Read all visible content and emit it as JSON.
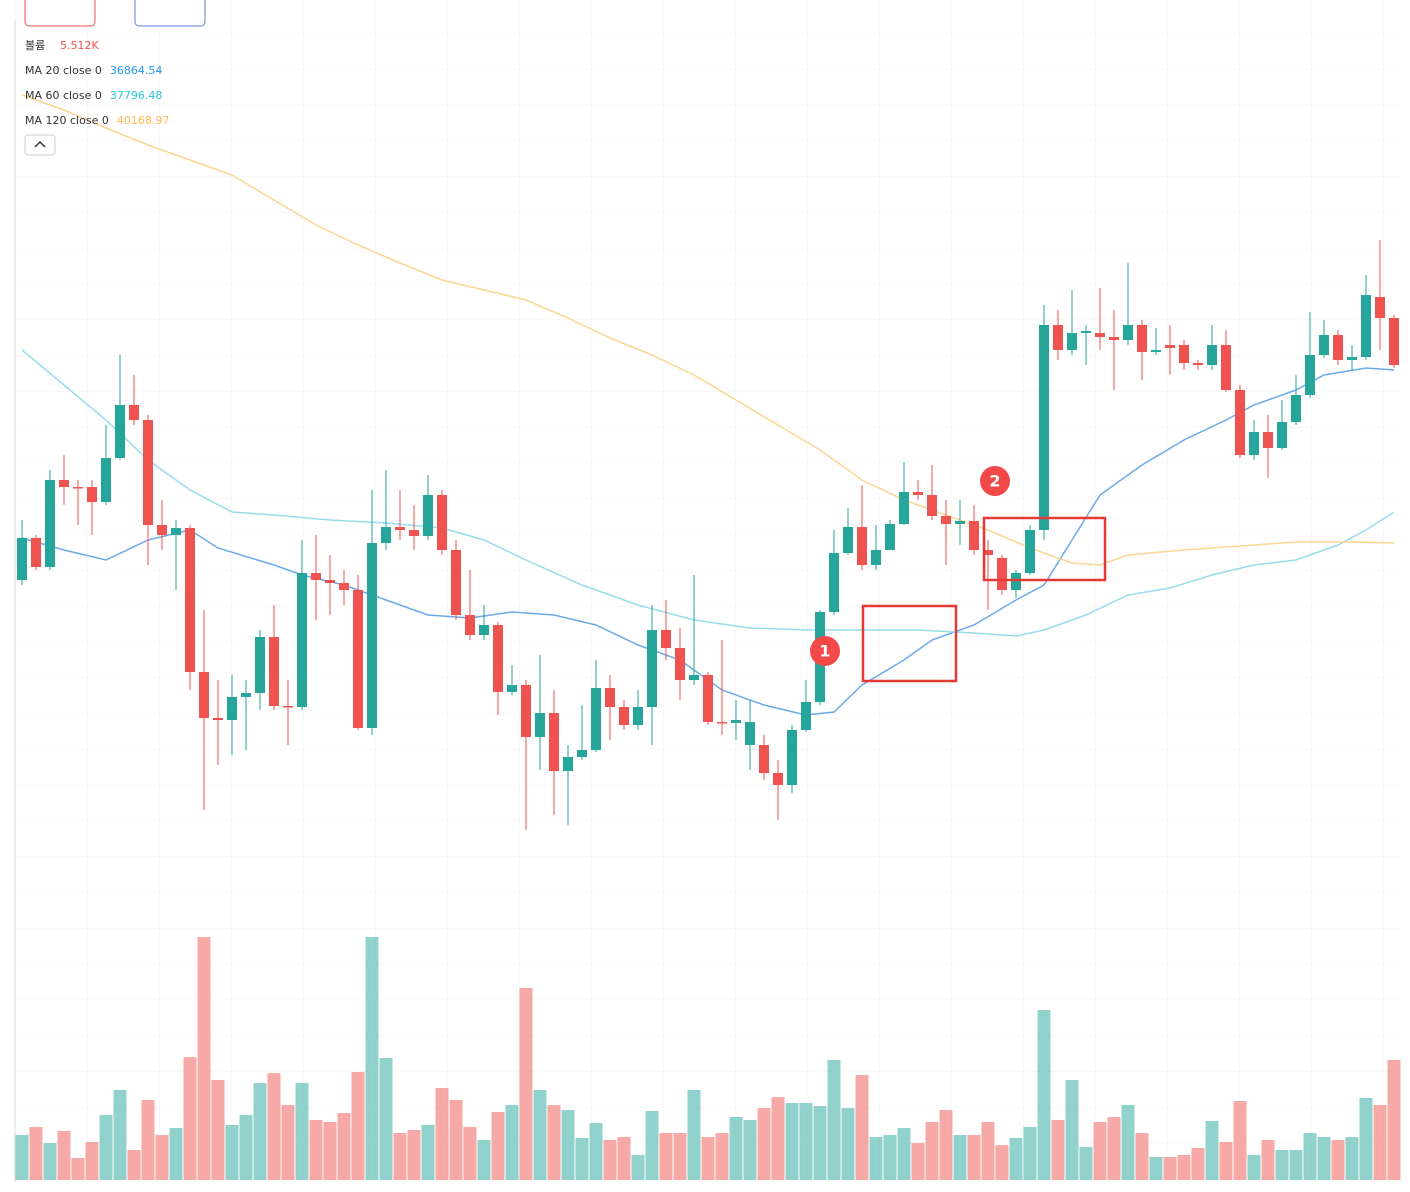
{
  "chart_data": {
    "type": "candlestick",
    "open": [
      40200,
      40620,
      40330,
      41200,
      41130,
      41130,
      40980,
      41420,
      41950,
      41800,
      40750,
      40650,
      40720,
      39280,
      38820,
      38800,
      39030,
      39070,
      39630,
      38940,
      38930,
      40270,
      40200,
      40170,
      40100,
      38720,
      40570,
      40730,
      40700,
      40640,
      41050,
      40500,
      39850,
      39650,
      39750,
      39080,
      39150,
      38630,
      38870,
      38290,
      38430,
      38500,
      39120,
      38930,
      38750,
      38930,
      39700,
      39520,
      39200,
      39250,
      38780,
      38770,
      38550,
      38550,
      38270,
      38150,
      38700,
      38980,
      39880,
      40470,
      40730,
      40350,
      40500,
      40760,
      41080,
      41050,
      40840,
      40760,
      40790,
      40500,
      40420,
      40100,
      40270,
      40700,
      42750,
      42500,
      42670,
      42670,
      42630,
      42600,
      42750,
      42480,
      42550,
      42550,
      42370,
      42350,
      42550,
      42100,
      41450,
      41680,
      41520,
      41780,
      42050,
      42450,
      42650,
      42400,
      42430,
      43030,
      42820
    ],
    "high": [
      40800,
      40650,
      41300,
      41450,
      41200,
      41200,
      41750,
      42450,
      42250,
      41850,
      41000,
      40800,
      40750,
      39900,
      39200,
      39250,
      39200,
      39700,
      39950,
      39200,
      40600,
      40650,
      40450,
      40300,
      40250,
      41100,
      41300,
      41100,
      40950,
      41250,
      41100,
      40600,
      40300,
      39950,
      39780,
      39350,
      39200,
      39450,
      39100,
      38550,
      38950,
      39400,
      39250,
      39000,
      39100,
      39950,
      40000,
      39720,
      40250,
      39280,
      39600,
      39000,
      39000,
      38650,
      38400,
      38750,
      39200,
      39900,
      40700,
      40920,
      41150,
      40750,
      40800,
      41380,
      41200,
      41350,
      41000,
      41000,
      40950,
      40600,
      40450,
      40300,
      40750,
      42950,
      42900,
      43100,
      42750,
      43120,
      42900,
      43370,
      42800,
      42720,
      42750,
      42600,
      42400,
      42750,
      42700,
      42150,
      41800,
      41850,
      42000,
      42250,
      42880,
      42800,
      42700,
      42550,
      43250,
      43600,
      42850
    ],
    "low": [
      40150,
      40300,
      40300,
      40950,
      40750,
      40650,
      40950,
      41400,
      41750,
      40350,
      40500,
      40100,
      39100,
      37900,
      38350,
      38450,
      38500,
      38900,
      38900,
      38550,
      38900,
      39800,
      39850,
      39950,
      38700,
      38650,
      40500,
      40600,
      40500,
      40600,
      40450,
      39800,
      39600,
      39600,
      38850,
      39050,
      37700,
      38300,
      37850,
      37750,
      38400,
      38480,
      38600,
      38700,
      38700,
      38550,
      39400,
      39000,
      39150,
      38750,
      38650,
      38600,
      38300,
      38200,
      37800,
      38070,
      38680,
      38950,
      39850,
      40450,
      40300,
      40300,
      40500,
      40750,
      41000,
      40800,
      40350,
      40550,
      40450,
      39900,
      40050,
      40020,
      40250,
      40600,
      42400,
      42450,
      42350,
      42500,
      42100,
      42550,
      42200,
      42450,
      42250,
      42300,
      42300,
      42300,
      42080,
      41420,
      41400,
      41220,
      41500,
      41750,
      42020,
      42420,
      42350,
      42300,
      42400,
      42500,
      42320
    ],
    "close": [
      40620,
      40330,
      41200,
      41130,
      41120,
      40980,
      41420,
      41950,
      41800,
      40750,
      40650,
      40720,
      39280,
      38820,
      38800,
      39030,
      39070,
      39630,
      38940,
      38930,
      40270,
      40200,
      40170,
      40100,
      38720,
      40570,
      40730,
      40700,
      40640,
      41050,
      40500,
      39850,
      39650,
      39750,
      39080,
      39150,
      38630,
      38870,
      38290,
      38430,
      38500,
      39120,
      38930,
      38750,
      38930,
      39700,
      39520,
      39200,
      39250,
      38780,
      38770,
      38800,
      38780,
      38270,
      38150,
      38700,
      38980,
      39880,
      40470,
      40730,
      40350,
      40500,
      40760,
      41080,
      41050,
      40840,
      40760,
      40790,
      40500,
      40450,
      40100,
      40270,
      40700,
      42750,
      42500,
      42670,
      42690,
      42630,
      42600,
      42750,
      42480,
      42500,
      42520,
      42370,
      42350,
      42550,
      42100,
      41450,
      41680,
      41520,
      41780,
      42050,
      42450,
      42650,
      42400,
      42430,
      43050,
      42820,
      42350
    ],
    "up_color": "#26a69a",
    "down_color": "#ef5350",
    "ylim": [
      37000,
      46000
    ],
    "volume": {
      "name": "볼륨",
      "legend_value": 5512,
      "legend_value_label": "5.512K",
      "legend_color": "#ef5350",
      "ylim": [
        0,
        8000
      ],
      "values": [
        1125,
        1325,
        925,
        1225,
        550,
        950,
        1625,
        2250,
        750,
        2000,
        1125,
        1300,
        3075,
        6075,
        2500,
        1375,
        1625,
        2425,
        2675,
        1875,
        2425,
        1500,
        1450,
        1675,
        2700,
        6075,
        3050,
        1175,
        1250,
        1375,
        2300,
        2000,
        1325,
        1000,
        1700,
        1875,
        4800,
        2250,
        1875,
        1750,
        1050,
        1425,
        1000,
        1075,
        625,
        1725,
        1175,
        1175,
        2250,
        1075,
        1175,
        1575,
        1500,
        1800,
        2075,
        1925,
        1925,
        1850,
        3000,
        1800,
        2625,
        1075,
        1125,
        1300,
        925,
        1450,
        1750,
        1125,
        1125,
        1450,
        875,
        1050,
        1325,
        4250,
        1500,
        2500,
        825,
        1450,
        1575,
        1875,
        1175,
        575,
        575,
        625,
        800,
        1475,
        950,
        1975,
        625,
        1000,
        750,
        750,
        1175,
        1075,
        1000,
        1075,
        2050,
        1875,
        3000
      ]
    },
    "series": [
      {
        "name": "MA 20 close 0",
        "color": "#6aaae8",
        "legend_color": "#2196f3",
        "legend_value": 36864.54,
        "x": [
          0,
          3,
          6,
          9,
          12,
          14,
          18,
          20,
          23,
          26,
          29,
          32,
          35,
          38,
          41,
          44,
          47,
          50,
          53,
          56,
          58,
          60,
          63,
          65,
          68,
          71,
          73,
          75,
          77,
          80,
          83,
          86,
          88,
          91,
          93,
          96,
          98
        ],
        "values": [
          40620,
          40500,
          40400,
          40600,
          40700,
          40520,
          40350,
          40250,
          40150,
          40000,
          39850,
          39820,
          39880,
          39850,
          39750,
          39550,
          39400,
          39100,
          38950,
          38850,
          38880,
          39150,
          39400,
          39600,
          39750,
          40000,
          40150,
          40600,
          41050,
          41350,
          41600,
          41800,
          41950,
          42100,
          42250,
          42320,
          42300
        ]
      },
      {
        "name": "MA 60 close 0",
        "color": "#97dcec",
        "legend_color": "#26c6da",
        "legend_value": 37796.48,
        "x": [
          0,
          3,
          6,
          9,
          12,
          15,
          18,
          22,
          26,
          30,
          33,
          36,
          40,
          44,
          48,
          52,
          56,
          60,
          64,
          68,
          71,
          73,
          76,
          79,
          82,
          85,
          88,
          91,
          94,
          96,
          98
        ],
        "values": [
          42500,
          42150,
          41800,
          41400,
          41100,
          40880,
          40850,
          40800,
          40770,
          40720,
          40600,
          40400,
          40150,
          39950,
          39800,
          39720,
          39700,
          39700,
          39700,
          39670,
          39640,
          39700,
          39850,
          40050,
          40120,
          40250,
          40350,
          40400,
          40550,
          40700,
          40880
        ]
      },
      {
        "name": "MA 120 close 0",
        "color": "#fbd592",
        "legend_color": "#ffb74d",
        "legend_value": 40168.97,
        "x": [
          0,
          3,
          6,
          9,
          12,
          15,
          18,
          21,
          24,
          27,
          30,
          33,
          36,
          39,
          42,
          45,
          48,
          51,
          54,
          57,
          60,
          63,
          66,
          69,
          72,
          75,
          77,
          79,
          83,
          87,
          91,
          95,
          98
        ],
        "values": [
          45050,
          44900,
          44720,
          44550,
          44400,
          44250,
          44000,
          43750,
          43550,
          43370,
          43200,
          43100,
          43000,
          42820,
          42620,
          42450,
          42250,
          42000,
          41750,
          41500,
          41200,
          41000,
          40850,
          40700,
          40520,
          40370,
          40350,
          40450,
          40500,
          40540,
          40580,
          40580,
          40570
        ]
      }
    ],
    "annotations": [
      "1",
      "2"
    ]
  }
}
